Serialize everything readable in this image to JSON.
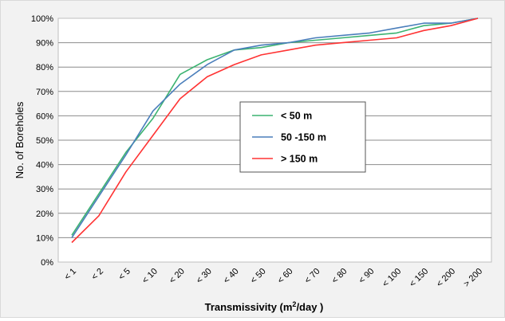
{
  "chart_data": {
    "type": "line",
    "title": "",
    "xlabel_main": "Transmissivity (m",
    "xlabel_sup": "2",
    "xlabel_tail": "/day )",
    "ylabel": "No. of Boreholes",
    "categories": [
      "< 1",
      "< 2",
      "< 5",
      "< 10",
      "< 20",
      "< 30",
      "< 40",
      "< 50",
      "< 60",
      "< 70",
      "< 80",
      "< 90",
      "< 100",
      "< 150",
      "< 200",
      "> 200"
    ],
    "y_ticks": [
      "0%",
      "10%",
      "20%",
      "30%",
      "40%",
      "50%",
      "60%",
      "70%",
      "80%",
      "90%",
      "100%"
    ],
    "ylim": [
      0,
      100
    ],
    "y_unit": "%",
    "grid": true,
    "legend_position": "center-right",
    "series": [
      {
        "name": "< 50 m",
        "color": "#3cb371",
        "values": [
          11,
          28,
          45,
          59,
          77,
          83,
          87,
          88,
          90,
          91,
          92,
          93,
          94,
          97,
          98,
          100
        ]
      },
      {
        "name": "50 -150 m",
        "color": "#4a7ebb",
        "values": [
          10,
          27,
          44,
          62,
          73,
          81,
          87,
          89,
          90,
          92,
          93,
          94,
          96,
          98,
          98,
          100
        ]
      },
      {
        "name": "> 150 m",
        "color": "#ff3333",
        "values": [
          8,
          19,
          37,
          52,
          67,
          76,
          81,
          85,
          87,
          89,
          90,
          91,
          92,
          95,
          97,
          100
        ]
      }
    ]
  }
}
